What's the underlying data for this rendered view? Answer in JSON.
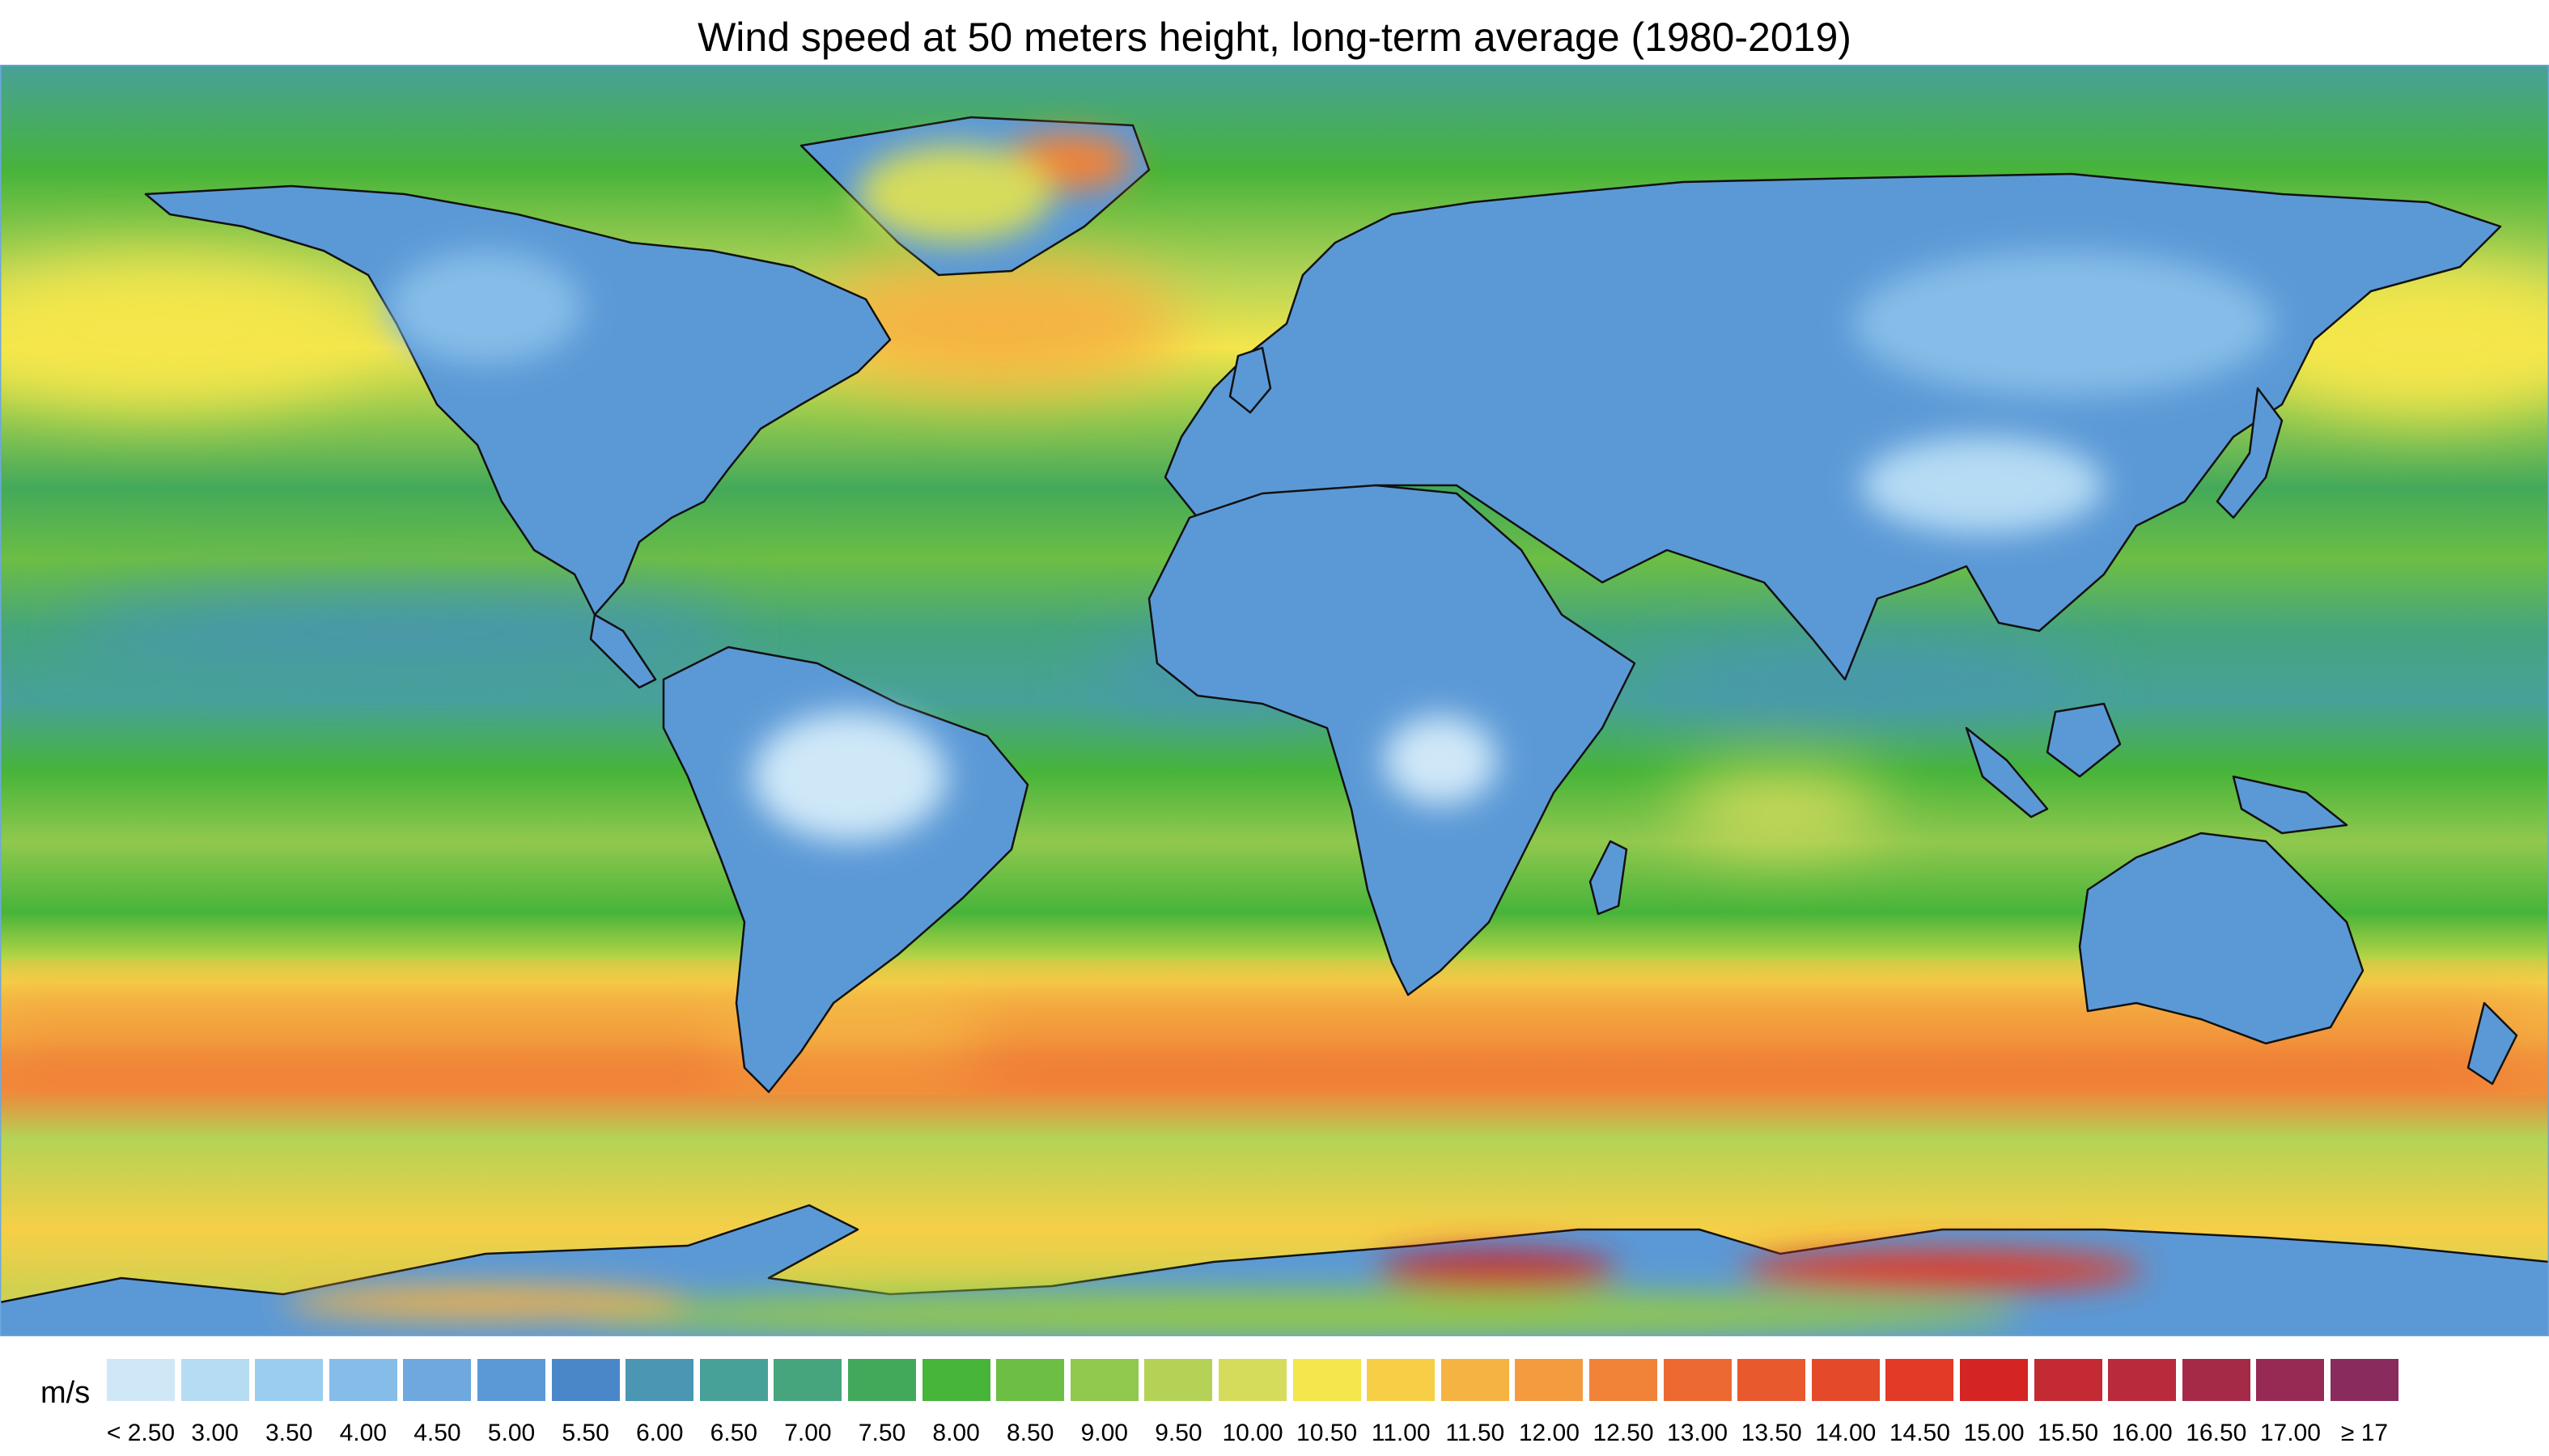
{
  "title": "Wind speed at 50 meters height, long-term average (1980-2019)",
  "legend": {
    "unit": "m/s",
    "labels": [
      "< 2.50",
      "3.00",
      "3.50",
      "4.00",
      "4.50",
      "5.00",
      "5.50",
      "6.00",
      "6.50",
      "7.00",
      "7.50",
      "8.00",
      "8.50",
      "9.00",
      "9.50",
      "10.00",
      "10.50",
      "11.00",
      "11.50",
      "12.00",
      "12.50",
      "13.00",
      "13.50",
      "14.00",
      "14.50",
      "15.00",
      "15.50",
      "16.00",
      "16.50",
      "17.00",
      "≥ 17"
    ],
    "colors": [
      "#cfe8f8",
      "#b6dcf4",
      "#9acdef",
      "#86bde8",
      "#6ea8df",
      "#5b99d6",
      "#4a87c8",
      "#4a96b3",
      "#47a199",
      "#46a57c",
      "#43a95a",
      "#47b43a",
      "#6cbe44",
      "#91c84e",
      "#b4d356",
      "#d5dc5c",
      "#f4e64c",
      "#f6cf47",
      "#f5b342",
      "#f39b3e",
      "#f18338",
      "#ec6a32",
      "#e8592e",
      "#e44a2a",
      "#e23a27",
      "#d42424",
      "#c42a34",
      "#b82a3c",
      "#a52a48",
      "#962a55",
      "#8a2b5e"
    ]
  },
  "chart_data": {
    "type": "heatmap",
    "title": "Wind speed at 50 meters height, long-term average (1980-2019)",
    "variable": "Wind speed at 50 meters height",
    "unit": "m/s",
    "period": "1980-2019",
    "color_scale_breaks": [
      2.5,
      3.0,
      3.5,
      4.0,
      4.5,
      5.0,
      5.5,
      6.0,
      6.5,
      7.0,
      7.5,
      8.0,
      8.5,
      9.0,
      9.5,
      10.0,
      10.5,
      11.0,
      11.5,
      12.0,
      12.5,
      13.0,
      13.5,
      14.0,
      14.5,
      15.0,
      15.5,
      16.0,
      16.5,
      17.0
    ],
    "legend_placement": "bottom",
    "lon_range": [
      -180,
      180
    ],
    "lat_range": [
      -90,
      90
    ],
    "zonal_band_speeds_ms": [
      {
        "lat": 90,
        "speed": 6.0
      },
      {
        "lat": 75,
        "speed": 7.5
      },
      {
        "lat": 60,
        "speed": 9.0
      },
      {
        "lat": 50,
        "speed": 10.0
      },
      {
        "lat": 40,
        "speed": 8.5
      },
      {
        "lat": 30,
        "speed": 7.0
      },
      {
        "lat": 20,
        "speed": 8.0
      },
      {
        "lat": 10,
        "speed": 6.5
      },
      {
        "lat": 0,
        "speed": 6.0
      },
      {
        "lat": -10,
        "speed": 7.5
      },
      {
        "lat": -20,
        "speed": 8.5
      },
      {
        "lat": -30,
        "speed": 7.5
      },
      {
        "lat": -40,
        "speed": 10.0
      },
      {
        "lat": -50,
        "speed": 12.5
      },
      {
        "lat": -55,
        "speed": 12.0
      },
      {
        "lat": -62,
        "speed": 9.0
      },
      {
        "lat": -75,
        "speed": 10.5
      },
      {
        "lat": -90,
        "speed": 9.0
      }
    ],
    "regional_highlights": [
      {
        "region": "Greenland ice sheet",
        "lon": -40,
        "lat": 72,
        "speed": 12.0
      },
      {
        "region": "North Atlantic",
        "lon": -25,
        "lat": 55,
        "speed": 11.0
      },
      {
        "region": "North Pacific",
        "lon": -160,
        "lat": 45,
        "speed": 10.5
      },
      {
        "region": "Southern Ocean",
        "lon": 60,
        "lat": -50,
        "speed": 13.5
      },
      {
        "region": "East Antarctica coast",
        "lon": 140,
        "lat": -70,
        "speed": 16.0
      },
      {
        "region": "Amazon basin",
        "lon": -60,
        "lat": -5,
        "speed": 2.5
      },
      {
        "region": "Congo basin",
        "lon": 22,
        "lat": 0,
        "speed": 2.5
      }
    ]
  }
}
